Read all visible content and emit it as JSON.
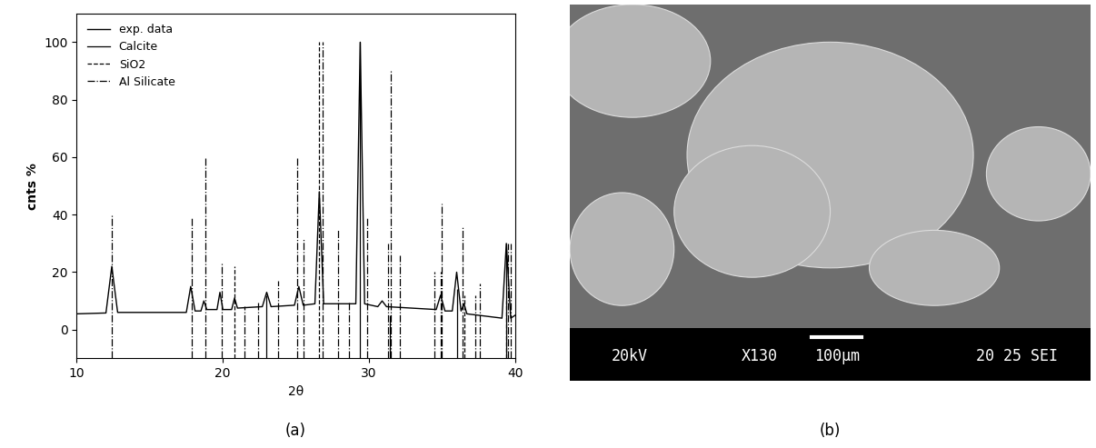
{
  "chart_data": {
    "type": "line",
    "xlabel": "2θ",
    "ylabel": "cnts %",
    "xlim": [
      10,
      40
    ],
    "xticks": [
      10,
      20,
      30,
      40
    ],
    "ylim": [
      -10,
      110
    ],
    "yticks": [
      0,
      20,
      40,
      60,
      80,
      100
    ],
    "legend": "upper left",
    "series": [
      {
        "name": "exp. data",
        "type": "line",
        "color": "#000000",
        "line_style": "solid",
        "x": [
          10,
          12.0,
          12.4,
          12.8,
          17.5,
          17.8,
          18.1,
          18.5,
          18.7,
          18.9,
          19.6,
          19.8,
          20.0,
          20.6,
          20.8,
          21.0,
          22.7,
          23.0,
          23.3,
          24.9,
          25.2,
          25.5,
          26.3,
          26.6,
          26.9,
          29.1,
          29.4,
          29.7,
          30.6,
          30.9,
          31.2,
          34.6,
          34.9,
          35.2,
          35.7,
          36.0,
          36.3,
          36.5,
          36.7,
          39.1,
          39.4,
          39.7,
          40
        ],
        "values": [
          5.5,
          5.8,
          22,
          6,
          6,
          15,
          6.5,
          6.5,
          10,
          7,
          7,
          13,
          7,
          7,
          11,
          7.5,
          8,
          13,
          8,
          8.5,
          15,
          8.5,
          9,
          48,
          9,
          9,
          100,
          9,
          8,
          10,
          8,
          7,
          12,
          6.5,
          6.5,
          20,
          6.5,
          9,
          5.5,
          4,
          30,
          4,
          5
        ]
      },
      {
        "name": "Calcite",
        "type": "stem",
        "color": "#000000",
        "line_style": "solid",
        "x": [
          23.0,
          29.4,
          31.4,
          36.0,
          39.4
        ],
        "values": [
          12,
          100,
          5,
          14,
          30
        ]
      },
      {
        "name": "SiO2",
        "type": "stem",
        "color": "#000000",
        "line_style": "dashed",
        "x": [
          20.8,
          26.6,
          36.5,
          39.4
        ],
        "values": [
          22,
          100,
          12,
          10
        ]
      },
      {
        "name": "Al Silicate",
        "type": "stem",
        "color": "#000000",
        "line_style": "dashdot",
        "x": [
          12.4,
          17.9,
          18.8,
          19.9,
          21.5,
          22.4,
          23.8,
          25.1,
          25.5,
          26.8,
          27.9,
          28.6,
          29.9,
          31.3,
          31.5,
          32.1,
          34.5,
          34.9,
          35.0,
          36.4,
          37.3,
          37.6,
          39.5,
          39.7
        ],
        "values": [
          40,
          39,
          60,
          23,
          8,
          10,
          17,
          60,
          32,
          100,
          35,
          10,
          39,
          30,
          90,
          26,
          20,
          20,
          44,
          36,
          12,
          16,
          30,
          30
        ]
      }
    ]
  },
  "sem_image": {
    "info_bar": [
      "20kV",
      "X130",
      "100μm",
      "20 25 SEI"
    ]
  },
  "panel_labels": [
    "(a)",
    "(b)"
  ]
}
